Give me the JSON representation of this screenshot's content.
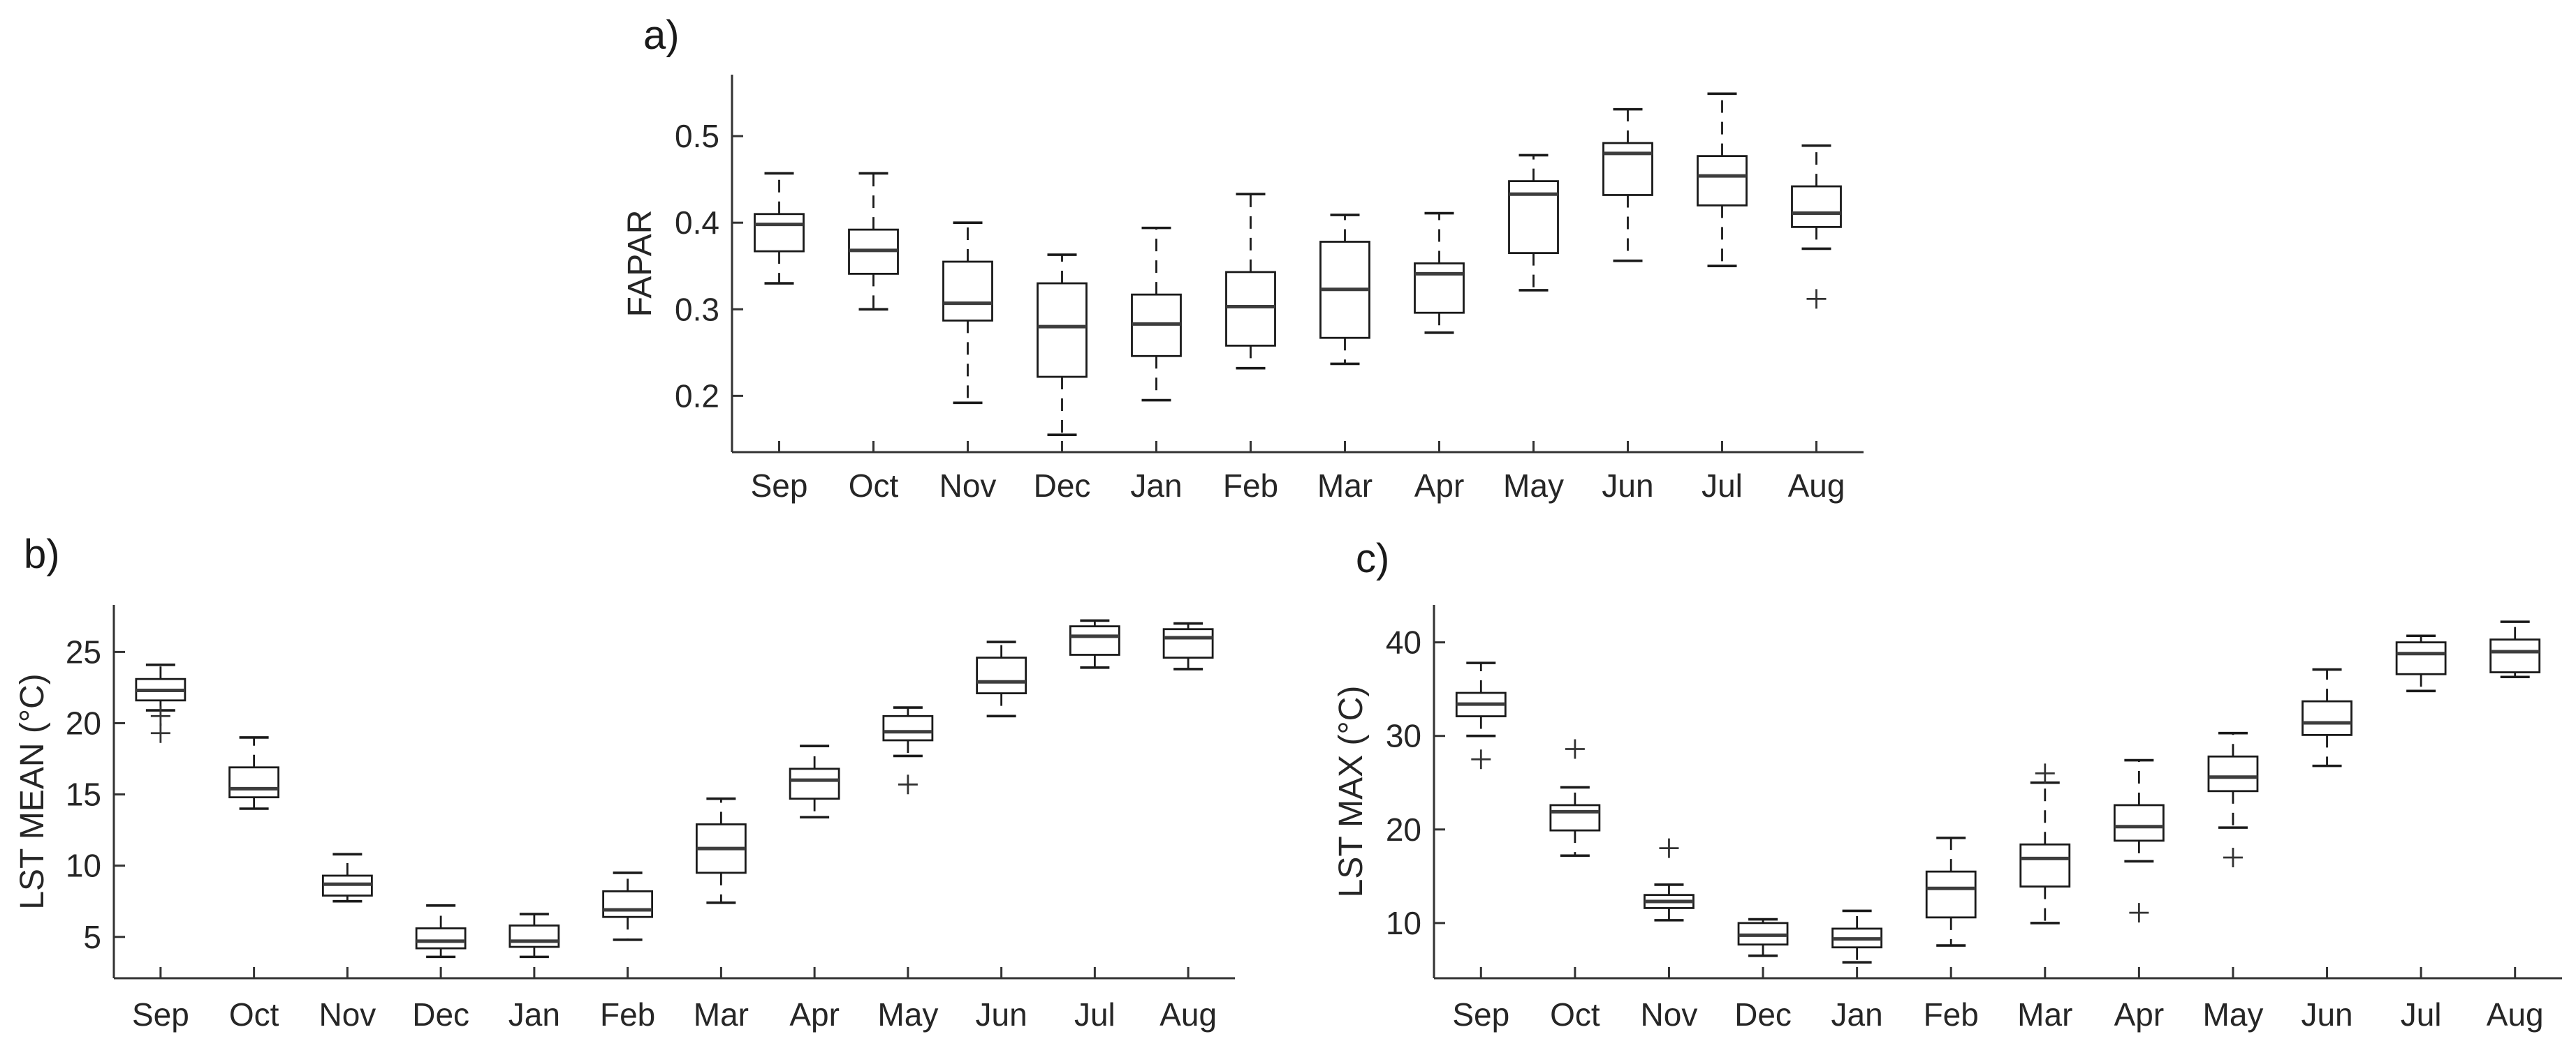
{
  "figure": {
    "background": "#ffffff",
    "axis_color": "#333333",
    "text_color": "#262626",
    "box_stroke_color": "#1a1a1a",
    "median_color": "#3d3d3d",
    "outlier_color": "#333333"
  },
  "chart_data": [
    {
      "type": "boxplot",
      "panel_label": "a)",
      "ylabel": "FAPAR",
      "xlabel": "",
      "legend": "none",
      "grid": false,
      "categories": [
        "Sep",
        "Oct",
        "Nov",
        "Dec",
        "Jan",
        "Feb",
        "Mar",
        "Apr",
        "May",
        "Jun",
        "Jul",
        "Aug"
      ],
      "ylim": [
        0.135,
        0.571
      ],
      "yticks": [
        "0.2",
        "0.3",
        "0.4",
        "0.5"
      ],
      "ytick_values": [
        0.2,
        0.3,
        0.4,
        0.5
      ],
      "series": [
        {
          "month": "Sep",
          "low": 0.33,
          "q1": 0.367,
          "median": 0.398,
          "q3": 0.41,
          "high": 0.457,
          "outliers": []
        },
        {
          "month": "Oct",
          "low": 0.3,
          "q1": 0.341,
          "median": 0.368,
          "q3": 0.392,
          "high": 0.457,
          "outliers": []
        },
        {
          "month": "Nov",
          "low": 0.192,
          "q1": 0.287,
          "median": 0.307,
          "q3": 0.355,
          "high": 0.4,
          "outliers": []
        },
        {
          "month": "Dec",
          "low": 0.155,
          "q1": 0.222,
          "median": 0.28,
          "q3": 0.33,
          "high": 0.363,
          "outliers": []
        },
        {
          "month": "Jan",
          "low": 0.195,
          "q1": 0.246,
          "median": 0.283,
          "q3": 0.317,
          "high": 0.394,
          "outliers": []
        },
        {
          "month": "Feb",
          "low": 0.232,
          "q1": 0.258,
          "median": 0.303,
          "q3": 0.343,
          "high": 0.433,
          "outliers": []
        },
        {
          "month": "Mar",
          "low": 0.237,
          "q1": 0.267,
          "median": 0.323,
          "q3": 0.378,
          "high": 0.409,
          "outliers": []
        },
        {
          "month": "Apr",
          "low": 0.273,
          "q1": 0.296,
          "median": 0.341,
          "q3": 0.353,
          "high": 0.411,
          "outliers": []
        },
        {
          "month": "May",
          "low": 0.322,
          "q1": 0.365,
          "median": 0.433,
          "q3": 0.448,
          "high": 0.478,
          "outliers": []
        },
        {
          "month": "Jun",
          "low": 0.356,
          "q1": 0.432,
          "median": 0.48,
          "q3": 0.492,
          "high": 0.531,
          "outliers": []
        },
        {
          "month": "Jul",
          "low": 0.35,
          "q1": 0.42,
          "median": 0.454,
          "q3": 0.477,
          "high": 0.549,
          "outliers": []
        },
        {
          "month": "Aug",
          "low": 0.37,
          "q1": 0.395,
          "median": 0.411,
          "q3": 0.442,
          "high": 0.489,
          "outliers": [
            0.312
          ]
        }
      ]
    },
    {
      "type": "boxplot",
      "panel_label": "b)",
      "ylabel": "LST MEAN (°C)",
      "xlabel": "",
      "legend": "none",
      "grid": false,
      "categories": [
        "Sep",
        "Oct",
        "Nov",
        "Dec",
        "Jan",
        "Feb",
        "Mar",
        "Apr",
        "May",
        "Jun",
        "Jul",
        "Aug"
      ],
      "ylim": [
        2.1,
        28.3
      ],
      "yticks": [
        "5",
        "10",
        "15",
        "20",
        "25"
      ],
      "ytick_values": [
        5,
        10,
        15,
        20,
        25
      ],
      "series": [
        {
          "month": "Sep",
          "low": 20.9,
          "q1": 21.6,
          "median": 22.3,
          "q3": 23.1,
          "high": 24.1,
          "outliers": [
            20.5,
            19.3
          ]
        },
        {
          "month": "Oct",
          "low": 14.0,
          "q1": 14.8,
          "median": 15.4,
          "q3": 16.9,
          "high": 19.0,
          "outliers": []
        },
        {
          "month": "Nov",
          "low": 7.5,
          "q1": 7.9,
          "median": 8.7,
          "q3": 9.3,
          "high": 10.8,
          "outliers": []
        },
        {
          "month": "Dec",
          "low": 3.6,
          "q1": 4.2,
          "median": 4.7,
          "q3": 5.6,
          "high": 7.2,
          "outliers": []
        },
        {
          "month": "Jan",
          "low": 3.6,
          "q1": 4.3,
          "median": 4.7,
          "q3": 5.8,
          "high": 6.6,
          "outliers": []
        },
        {
          "month": "Feb",
          "low": 4.8,
          "q1": 6.4,
          "median": 6.9,
          "q3": 8.2,
          "high": 9.5,
          "outliers": []
        },
        {
          "month": "Mar",
          "low": 7.4,
          "q1": 9.5,
          "median": 11.2,
          "q3": 12.9,
          "high": 14.7,
          "outliers": []
        },
        {
          "month": "Apr",
          "low": 13.4,
          "q1": 14.7,
          "median": 16.0,
          "q3": 16.8,
          "high": 18.4,
          "outliers": []
        },
        {
          "month": "May",
          "low": 17.7,
          "q1": 18.8,
          "median": 19.4,
          "q3": 20.5,
          "high": 21.1,
          "outliers": [
            15.7
          ]
        },
        {
          "month": "Jun",
          "low": 20.5,
          "q1": 22.1,
          "median": 22.9,
          "q3": 24.6,
          "high": 25.7,
          "outliers": []
        },
        {
          "month": "Jul",
          "low": 23.9,
          "q1": 24.8,
          "median": 26.1,
          "q3": 26.8,
          "high": 27.2,
          "outliers": []
        },
        {
          "month": "Aug",
          "low": 23.8,
          "q1": 24.6,
          "median": 26.0,
          "q3": 26.6,
          "high": 27.0,
          "outliers": []
        }
      ]
    },
    {
      "type": "boxplot",
      "panel_label": "c)",
      "ylabel": "LST MAX (°C)",
      "xlabel": "",
      "legend": "none",
      "grid": false,
      "categories": [
        "Sep",
        "Oct",
        "Nov",
        "Dec",
        "Jan",
        "Feb",
        "Mar",
        "Apr",
        "May",
        "Jun",
        "Jul",
        "Aug"
      ],
      "ylim": [
        4.1,
        44.0
      ],
      "yticks": [
        "10",
        "20",
        "30",
        "40"
      ],
      "ytick_values": [
        10,
        20,
        30,
        40
      ],
      "series": [
        {
          "month": "Sep",
          "low": 30.0,
          "q1": 32.1,
          "median": 33.4,
          "q3": 34.6,
          "high": 37.8,
          "outliers": [
            27.5
          ]
        },
        {
          "month": "Oct",
          "low": 17.2,
          "q1": 19.9,
          "median": 21.9,
          "q3": 22.6,
          "high": 24.5,
          "outliers": [
            28.6
          ]
        },
        {
          "month": "Nov",
          "low": 10.3,
          "q1": 11.6,
          "median": 12.3,
          "q3": 13.0,
          "high": 14.1,
          "outliers": [
            18.0
          ]
        },
        {
          "month": "Dec",
          "low": 6.5,
          "q1": 7.7,
          "median": 8.7,
          "q3": 10.0,
          "high": 10.4,
          "outliers": []
        },
        {
          "month": "Jan",
          "low": 5.8,
          "q1": 7.4,
          "median": 8.3,
          "q3": 9.4,
          "high": 11.3,
          "outliers": []
        },
        {
          "month": "Feb",
          "low": 7.6,
          "q1": 10.6,
          "median": 13.7,
          "q3": 15.5,
          "high": 19.1,
          "outliers": []
        },
        {
          "month": "Mar",
          "low": 10.0,
          "q1": 13.9,
          "median": 16.9,
          "q3": 18.4,
          "high": 25.0,
          "outliers": [
            26.0
          ]
        },
        {
          "month": "Apr",
          "low": 16.6,
          "q1": 18.8,
          "median": 20.3,
          "q3": 22.6,
          "high": 27.4,
          "outliers": [
            11.1
          ]
        },
        {
          "month": "May",
          "low": 20.2,
          "q1": 24.1,
          "median": 25.6,
          "q3": 27.8,
          "high": 30.3,
          "outliers": [
            17.0
          ]
        },
        {
          "month": "Jun",
          "low": 26.8,
          "q1": 30.1,
          "median": 31.4,
          "q3": 33.7,
          "high": 37.1,
          "outliers": []
        },
        {
          "month": "Jul",
          "low": 34.8,
          "q1": 36.6,
          "median": 38.8,
          "q3": 40.0,
          "high": 40.7,
          "outliers": []
        },
        {
          "month": "Aug",
          "low": 36.3,
          "q1": 36.8,
          "median": 39.0,
          "q3": 40.3,
          "high": 42.2,
          "outliers": []
        }
      ]
    }
  ]
}
